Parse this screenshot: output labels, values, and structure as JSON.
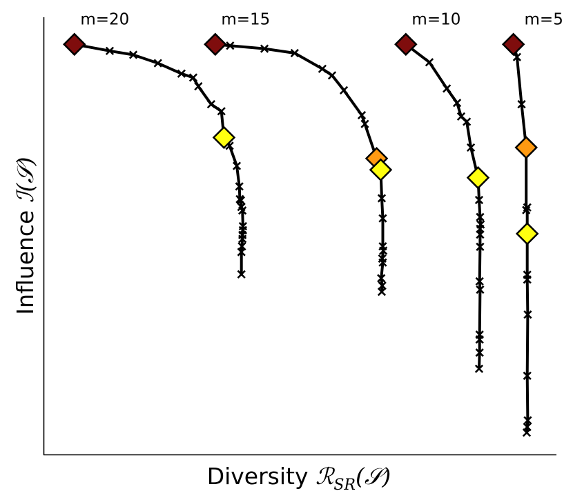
{
  "chart_data": {
    "type": "line",
    "title": "",
    "xlabel_text": "Diversity ",
    "xlabel_math": "ℛ",
    "xlabel_sub": "SR",
    "xlabel_arg": "(𝒮)",
    "ylabel_text": "Influence ",
    "ylabel_math": "ℐ(𝒮)",
    "xlim": [
      0,
      100
    ],
    "ylim": [
      0,
      100
    ],
    "ticks": "none",
    "grid": false,
    "legend": "none",
    "colors": {
      "line": "#000000",
      "start": "#7f0d0d",
      "orange": "#ff9a12",
      "yellow": "#ffff10"
    },
    "series": [
      {
        "name": "m=20",
        "x": [
          5.9,
          12.8,
          17.4,
          22.2,
          26.8,
          29.1,
          30.1,
          32.6,
          34.6,
          35.1,
          36.2,
          37.6,
          38.1,
          38.2,
          38.4,
          38.5,
          38.7,
          38.8,
          38.8,
          38.7,
          38.7,
          38.6,
          38.5,
          38.5
        ],
        "y": [
          93.8,
          92.3,
          91.4,
          89.5,
          87.1,
          86.2,
          84.2,
          80.1,
          78.5,
          72.5,
          70.6,
          66.0,
          61.3,
          58.4,
          58.1,
          56.6,
          55.8,
          52.2,
          51.3,
          50.2,
          49.3,
          47.6,
          46.3,
          41.2
        ],
        "markers": [
          {
            "index": 0,
            "color": "start"
          },
          {
            "index": 9,
            "color": "yellow"
          }
        ]
      },
      {
        "name": "m=15",
        "x": [
          33.4,
          36.3,
          43.0,
          48.9,
          54.3,
          56.2,
          58.5,
          62.0,
          62.6,
          64.9,
          65.7,
          65.9,
          66.1,
          66.1,
          66.2,
          66.0,
          66.1,
          65.8,
          66.0,
          65.9
        ],
        "y": [
          93.8,
          93.5,
          92.8,
          91.8,
          88.2,
          86.7,
          83.3,
          77.6,
          75.6,
          67.7,
          65.1,
          58.6,
          54.0,
          47.6,
          46.6,
          44.8,
          43.9,
          40.3,
          38.6,
          37.2
        ],
        "markers": [
          {
            "index": 0,
            "color": "start"
          },
          {
            "index": 9,
            "color": "orange"
          },
          {
            "index": 10,
            "color": "yellow"
          }
        ]
      },
      {
        "name": "m=10",
        "x": [
          70.6,
          75.2,
          78.6,
          80.6,
          81.4,
          82.5,
          83.3,
          84.7,
          84.9,
          85.1,
          85.2,
          85.1,
          85.1,
          85.1,
          85.0,
          85.1,
          85.0,
          85.0,
          85.0,
          84.9
        ],
        "y": [
          93.8,
          89.7,
          83.7,
          80.4,
          77.3,
          76.1,
          70.2,
          63.3,
          58.2,
          54.3,
          52.6,
          51.6,
          50.3,
          47.5,
          39.6,
          37.7,
          27.4,
          26.3,
          23.3,
          19.6
        ],
        "markers": [
          {
            "index": 0,
            "color": "start"
          },
          {
            "index": 7,
            "color": "yellow"
          }
        ]
      },
      {
        "name": "m=5",
        "x": [
          91.6,
          92.3,
          93.2,
          94.1,
          94.1,
          94.3,
          94.3,
          94.3,
          94.3,
          94.4,
          94.3,
          94.4,
          94.3,
          94.2
        ],
        "y": [
          93.8,
          90.9,
          80.1,
          70.2,
          55.9,
          56.5,
          50.5,
          41.1,
          40.0,
          32.0,
          18.0,
          7.8,
          6.3,
          5.0
        ],
        "markers": [
          {
            "index": 0,
            "color": "start"
          },
          {
            "index": 3,
            "color": "orange"
          },
          {
            "index": 6,
            "color": "yellow"
          }
        ]
      }
    ]
  }
}
